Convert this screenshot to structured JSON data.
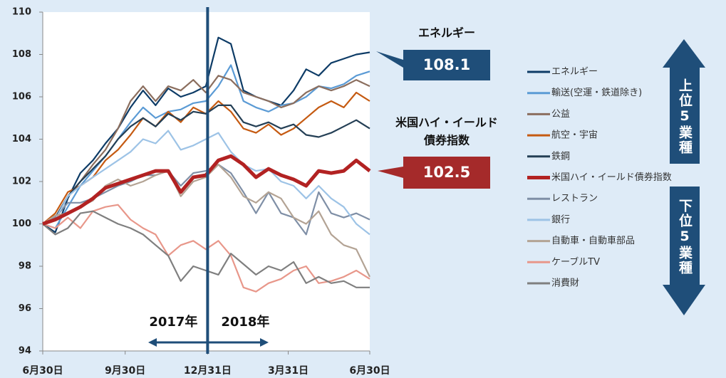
{
  "chart_data": {
    "type": "line",
    "x": [
      0,
      14,
      28,
      42,
      56,
      70,
      84,
      98,
      112,
      126,
      140,
      154,
      168,
      182,
      196,
      210,
      224,
      238,
      252,
      266,
      280,
      294,
      308,
      322,
      336,
      350,
      365
    ],
    "xlim": [
      0,
      365
    ],
    "xticks": [
      {
        "value": 0,
        "label": "6月30日"
      },
      {
        "value": 92,
        "label": "9月30日"
      },
      {
        "value": 184,
        "label": "12月31日"
      },
      {
        "value": 274,
        "label": "3月31日"
      },
      {
        "value": 365,
        "label": "6月30日"
      }
    ],
    "ylim": [
      94,
      110
    ],
    "yticks": [
      94,
      96,
      98,
      100,
      102,
      104,
      106,
      108,
      110
    ],
    "series": [
      {
        "name": "エネルギー",
        "color": "#0d3b66",
        "values": [
          100,
          99.6,
          101.2,
          102.4,
          103,
          103.8,
          104.5,
          105.5,
          106.3,
          105.6,
          106.4,
          106,
          106.2,
          106.5,
          108.8,
          108.5,
          106.3,
          106,
          105.8,
          105.6,
          106.3,
          107.3,
          107,
          107.6,
          107.8,
          108,
          108.1
        ]
      },
      {
        "name": "輸送(空運・鉄道除き)",
        "color": "#5b9bd5",
        "values": [
          100,
          99.8,
          100.8,
          101.8,
          102.5,
          103.2,
          104,
          104.8,
          105.5,
          105,
          105.3,
          105.4,
          105.7,
          105.8,
          106.5,
          107.5,
          105.8,
          105.5,
          105.3,
          105.6,
          105.7,
          106,
          106.5,
          106.4,
          106.6,
          107,
          107.2
        ]
      },
      {
        "name": "公益",
        "color": "#8b6e5e",
        "values": [
          100,
          100.2,
          101.3,
          102,
          102.8,
          103.5,
          104.5,
          105.8,
          106.5,
          105.8,
          106.5,
          106.3,
          106.8,
          106.2,
          107,
          106.8,
          106.2,
          106,
          105.8,
          105.5,
          105.7,
          106.2,
          106.5,
          106.3,
          106.5,
          106.8,
          106.5
        ]
      },
      {
        "name": "航空・宇宙",
        "color": "#c55a11",
        "values": [
          100,
          100.5,
          101.5,
          101.8,
          102.2,
          103,
          103.5,
          104.2,
          105,
          104.6,
          105.3,
          104.8,
          105.5,
          105.2,
          105.8,
          105.3,
          104.5,
          104.3,
          104.7,
          104.2,
          104.5,
          105,
          105.5,
          105.8,
          105.5,
          106.2,
          105.8
        ]
      },
      {
        "name": "鉄鋼",
        "color": "#243f55",
        "values": [
          100,
          100.3,
          101.3,
          102,
          102.6,
          103.2,
          104,
          104.6,
          105,
          104.6,
          105.2,
          104.9,
          105.3,
          105.2,
          105.6,
          105.6,
          104.8,
          104.6,
          104.8,
          104.5,
          104.7,
          104.2,
          104.1,
          104.3,
          104.6,
          104.9,
          104.5
        ]
      },
      {
        "name": "米国ハイ・イールド債券指数",
        "color": "#b22222",
        "values": [
          100,
          100.2,
          100.5,
          100.8,
          101.2,
          101.7,
          101.9,
          102.1,
          102.3,
          102.5,
          102.5,
          101.5,
          102.2,
          102.3,
          103,
          103.2,
          102.8,
          102.2,
          102.6,
          102.3,
          102.1,
          101.8,
          102.5,
          102.4,
          102.5,
          103,
          102.5
        ]
      },
      {
        "name": "レストラン",
        "color": "#7f8fa6",
        "values": [
          100,
          100.3,
          101,
          101,
          101.2,
          101.5,
          101.8,
          102,
          102.3,
          102.3,
          102.5,
          101.8,
          102.4,
          102.5,
          102.8,
          102.4,
          101.5,
          100.5,
          101.5,
          100.5,
          100.3,
          99.5,
          101.5,
          100.5,
          100.3,
          100.5,
          100.2
        ]
      },
      {
        "name": "銀行",
        "color": "#9dc3e6",
        "values": [
          100,
          100.2,
          101.3,
          101.8,
          102.2,
          102.6,
          103,
          103.4,
          104,
          103.8,
          104.4,
          103.5,
          103.7,
          104,
          104.3,
          103.4,
          102.8,
          102.5,
          102.6,
          102,
          101.8,
          101.2,
          101.8,
          101.2,
          100.8,
          100,
          99.5
        ]
      },
      {
        "name": "自動車・自動車部品",
        "color": "#b3a394",
        "values": [
          100,
          100.4,
          100.5,
          100.8,
          101.1,
          101.8,
          102.1,
          101.8,
          102,
          102.3,
          102.5,
          101.3,
          102,
          102.2,
          102.8,
          102.2,
          101.3,
          101,
          101.5,
          101.2,
          100.3,
          100,
          100.6,
          99.5,
          99,
          98.8,
          97.5
        ]
      },
      {
        "name": "ケーブルTV",
        "color": "#e8978a",
        "values": [
          100,
          99.8,
          100.3,
          99.8,
          100.6,
          100.8,
          100.9,
          100.2,
          99.8,
          99.5,
          98.5,
          99,
          99.2,
          98.8,
          99.2,
          98.5,
          97,
          96.8,
          97.2,
          97.4,
          97.8,
          98,
          97.2,
          97.3,
          97.5,
          97.8,
          97.4
        ]
      },
      {
        "name": "消費財",
        "color": "#7f7f7f",
        "values": [
          100,
          99.5,
          99.8,
          100.5,
          100.6,
          100.3,
          100,
          99.8,
          99.5,
          99,
          98.5,
          97.3,
          98,
          97.8,
          97.6,
          98.6,
          98.1,
          97.6,
          98,
          97.8,
          98.2,
          97.2,
          97.5,
          97.2,
          97.3,
          97,
          97
        ]
      }
    ],
    "callouts": [
      {
        "lines": [
          "エネルギー"
        ]
      },
      {
        "lines": [
          "米国ハイ・イールド",
          "債券指数"
        ]
      }
    ],
    "year_labels": [
      "2017年",
      "2018年"
    ],
    "rank_labels": [
      "上位5業種",
      "下位5業種"
    ]
  }
}
